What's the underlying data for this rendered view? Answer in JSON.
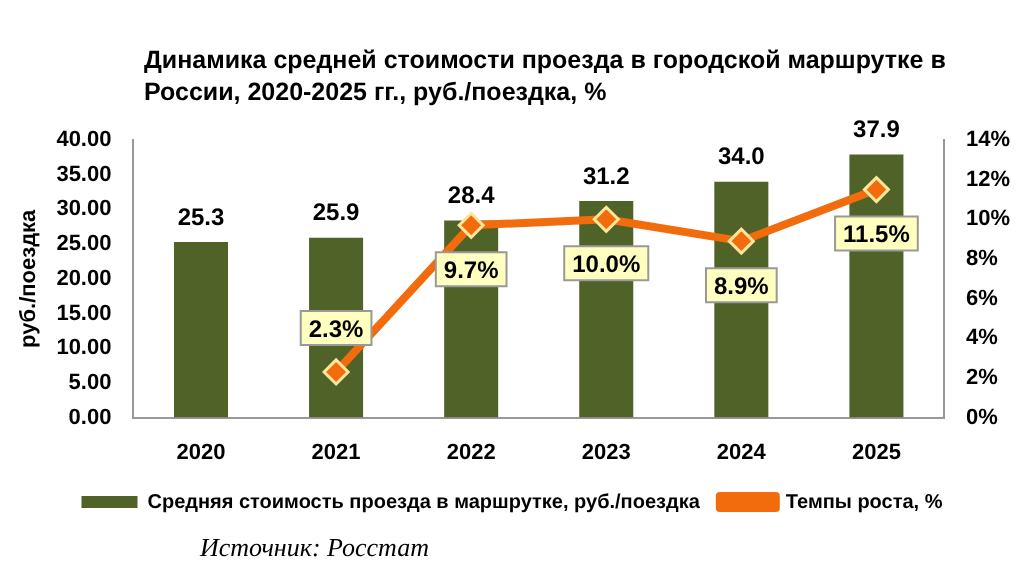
{
  "chart_data": {
    "type": "bar",
    "title": "Динамика средней стоимости проезда в городской маршрутке в России, 2020-2025 гг., руб./поездка, %",
    "ylabel": "руб./поездка",
    "categories": [
      "2020",
      "2021",
      "2022",
      "2023",
      "2024",
      "2025"
    ],
    "series": [
      {
        "name": "Средняя стоимость проезда в маршрутке, руб./поездка",
        "color": "#4f6228",
        "values": [
          25.3,
          25.9,
          28.4,
          31.2,
          34.0,
          37.9
        ],
        "value_labels": [
          "25.3",
          "25.9",
          "28.4",
          "31.2",
          "34.0",
          "37.9"
        ]
      },
      {
        "name": "Темпы роста, %",
        "type": "line",
        "axis": "y2",
        "color": "#f26c0d",
        "marker": "diamond",
        "values": [
          null,
          2.3,
          9.7,
          10.0,
          8.9,
          11.5
        ],
        "value_labels": [
          null,
          "2.3%",
          "9.7%",
          "10.0%",
          "8.9%",
          "11.5%"
        ]
      }
    ],
    "ylim": [
      0,
      40
    ],
    "yticks": [
      {
        "value": 0,
        "label": "0.00"
      },
      {
        "value": 5,
        "label": "5.00"
      },
      {
        "value": 10,
        "label": "10.00"
      },
      {
        "value": 15,
        "label": "15.00"
      },
      {
        "value": 20,
        "label": "20.00"
      },
      {
        "value": 25,
        "label": "25.00"
      },
      {
        "value": 30,
        "label": "30.00"
      },
      {
        "value": 35,
        "label": "35.00"
      },
      {
        "value": 40,
        "label": "40.00"
      }
    ],
    "y2lim": [
      0,
      14
    ],
    "y2ticks": [
      {
        "value": 0,
        "label": "0%"
      },
      {
        "value": 2,
        "label": "2%"
      },
      {
        "value": 4,
        "label": "4%"
      },
      {
        "value": 6,
        "label": "6%"
      },
      {
        "value": 8,
        "label": "8%"
      },
      {
        "value": 10,
        "label": "10%"
      },
      {
        "value": 12,
        "label": "12%"
      },
      {
        "value": 14,
        "label": "14%"
      }
    ],
    "grid": false,
    "legend": "bottom",
    "annotations": [
      "Источник: Росстат"
    ]
  }
}
